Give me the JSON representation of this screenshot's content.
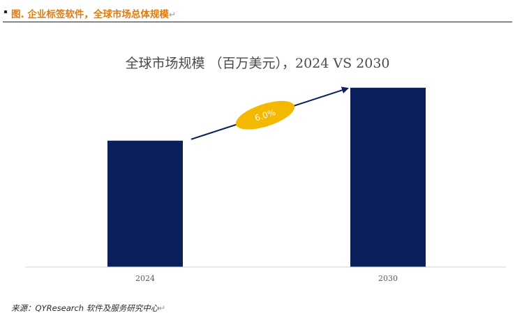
{
  "header": {
    "title": "图.   企业标签软件，全球市场总体规模",
    "return_mark": "↵"
  },
  "chart_data": {
    "type": "bar",
    "title": "全球市场规模 （百万美元），2024 VS 2030",
    "categories": [
      "2024",
      "2030"
    ],
    "values": [
      100,
      141.9
    ],
    "ylim": [
      0,
      160
    ],
    "xlabel": "",
    "ylabel": "",
    "grid": false,
    "legend": "none",
    "bar_color": "#0b1f5c",
    "annotation": {
      "text": "6.0%",
      "from": "2024",
      "to": "2030",
      "badge_color": "#f5b800",
      "arrow_color": "#0b1f5c"
    }
  },
  "footer": {
    "source": "来源：QYResearch 软件及服务研究中心",
    "return_mark": "↵"
  }
}
